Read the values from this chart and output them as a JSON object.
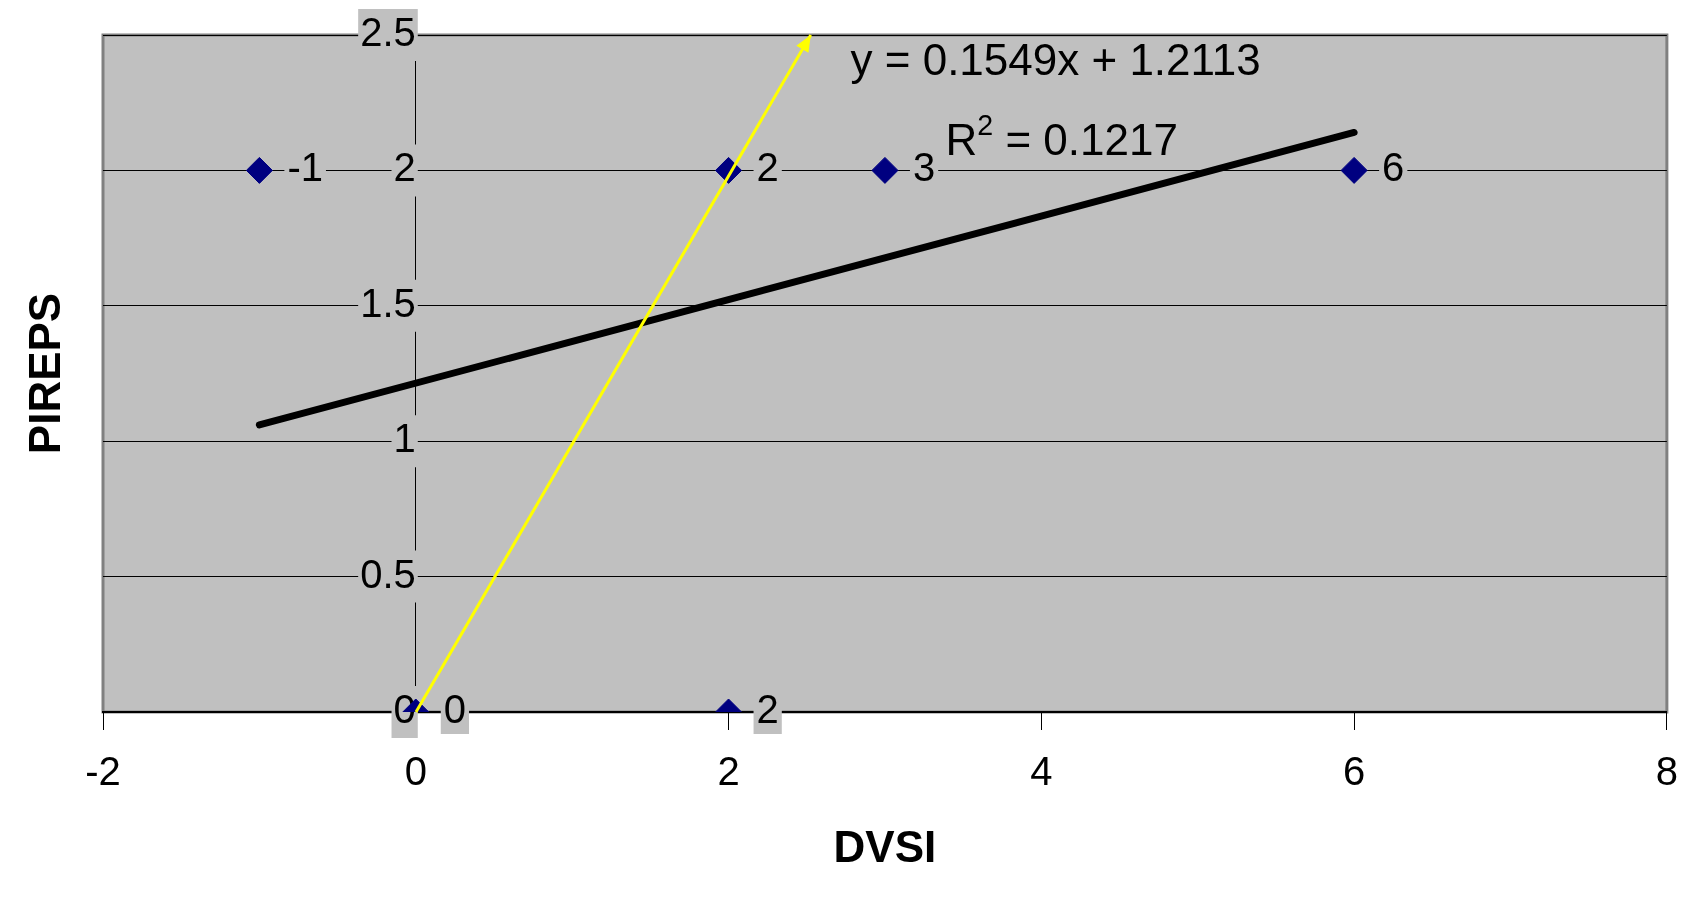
{
  "chart_data": {
    "type": "scatter",
    "xlabel": "DVSI",
    "ylabel": "PIREPS",
    "annotations": [
      "y = 0.1549x + 1.2113",
      "R$^{2}$ = 0.1217",
      {
        "text": "-1",
        "x": -1,
        "y": 2
      },
      {
        "text": "2",
        "x": 2,
        "y": 2
      },
      {
        "text": "3",
        "x": 3,
        "y": 2
      },
      {
        "text": "6",
        "x": 6,
        "y": 2
      },
      {
        "text": "0",
        "x": 0,
        "y": 0
      },
      {
        "text": "2",
        "x": 2,
        "y": 0
      }
    ],
    "xlim": [
      -2,
      8
    ],
    "xticks": [
      -2,
      0,
      2,
      4,
      6,
      8
    ],
    "ylim": [
      0,
      2.5
    ],
    "yticks": [
      0,
      0.5,
      1,
      1.5,
      2,
      2.5
    ],
    "grid": "y",
    "legend": false,
    "marker": "diamond",
    "series": [
      {
        "color": "#000080",
        "x": [
          -1,
          2,
          3,
          6,
          0,
          2
        ],
        "values": [
          2,
          2,
          2,
          2,
          0,
          0
        ]
      },
      {
        "type": "line",
        "color": "#000000",
        "marker": "none",
        "x": [
          -1,
          6
        ],
        "values": [
          1.06,
          2.14
        ]
      }
    ]
  }
}
